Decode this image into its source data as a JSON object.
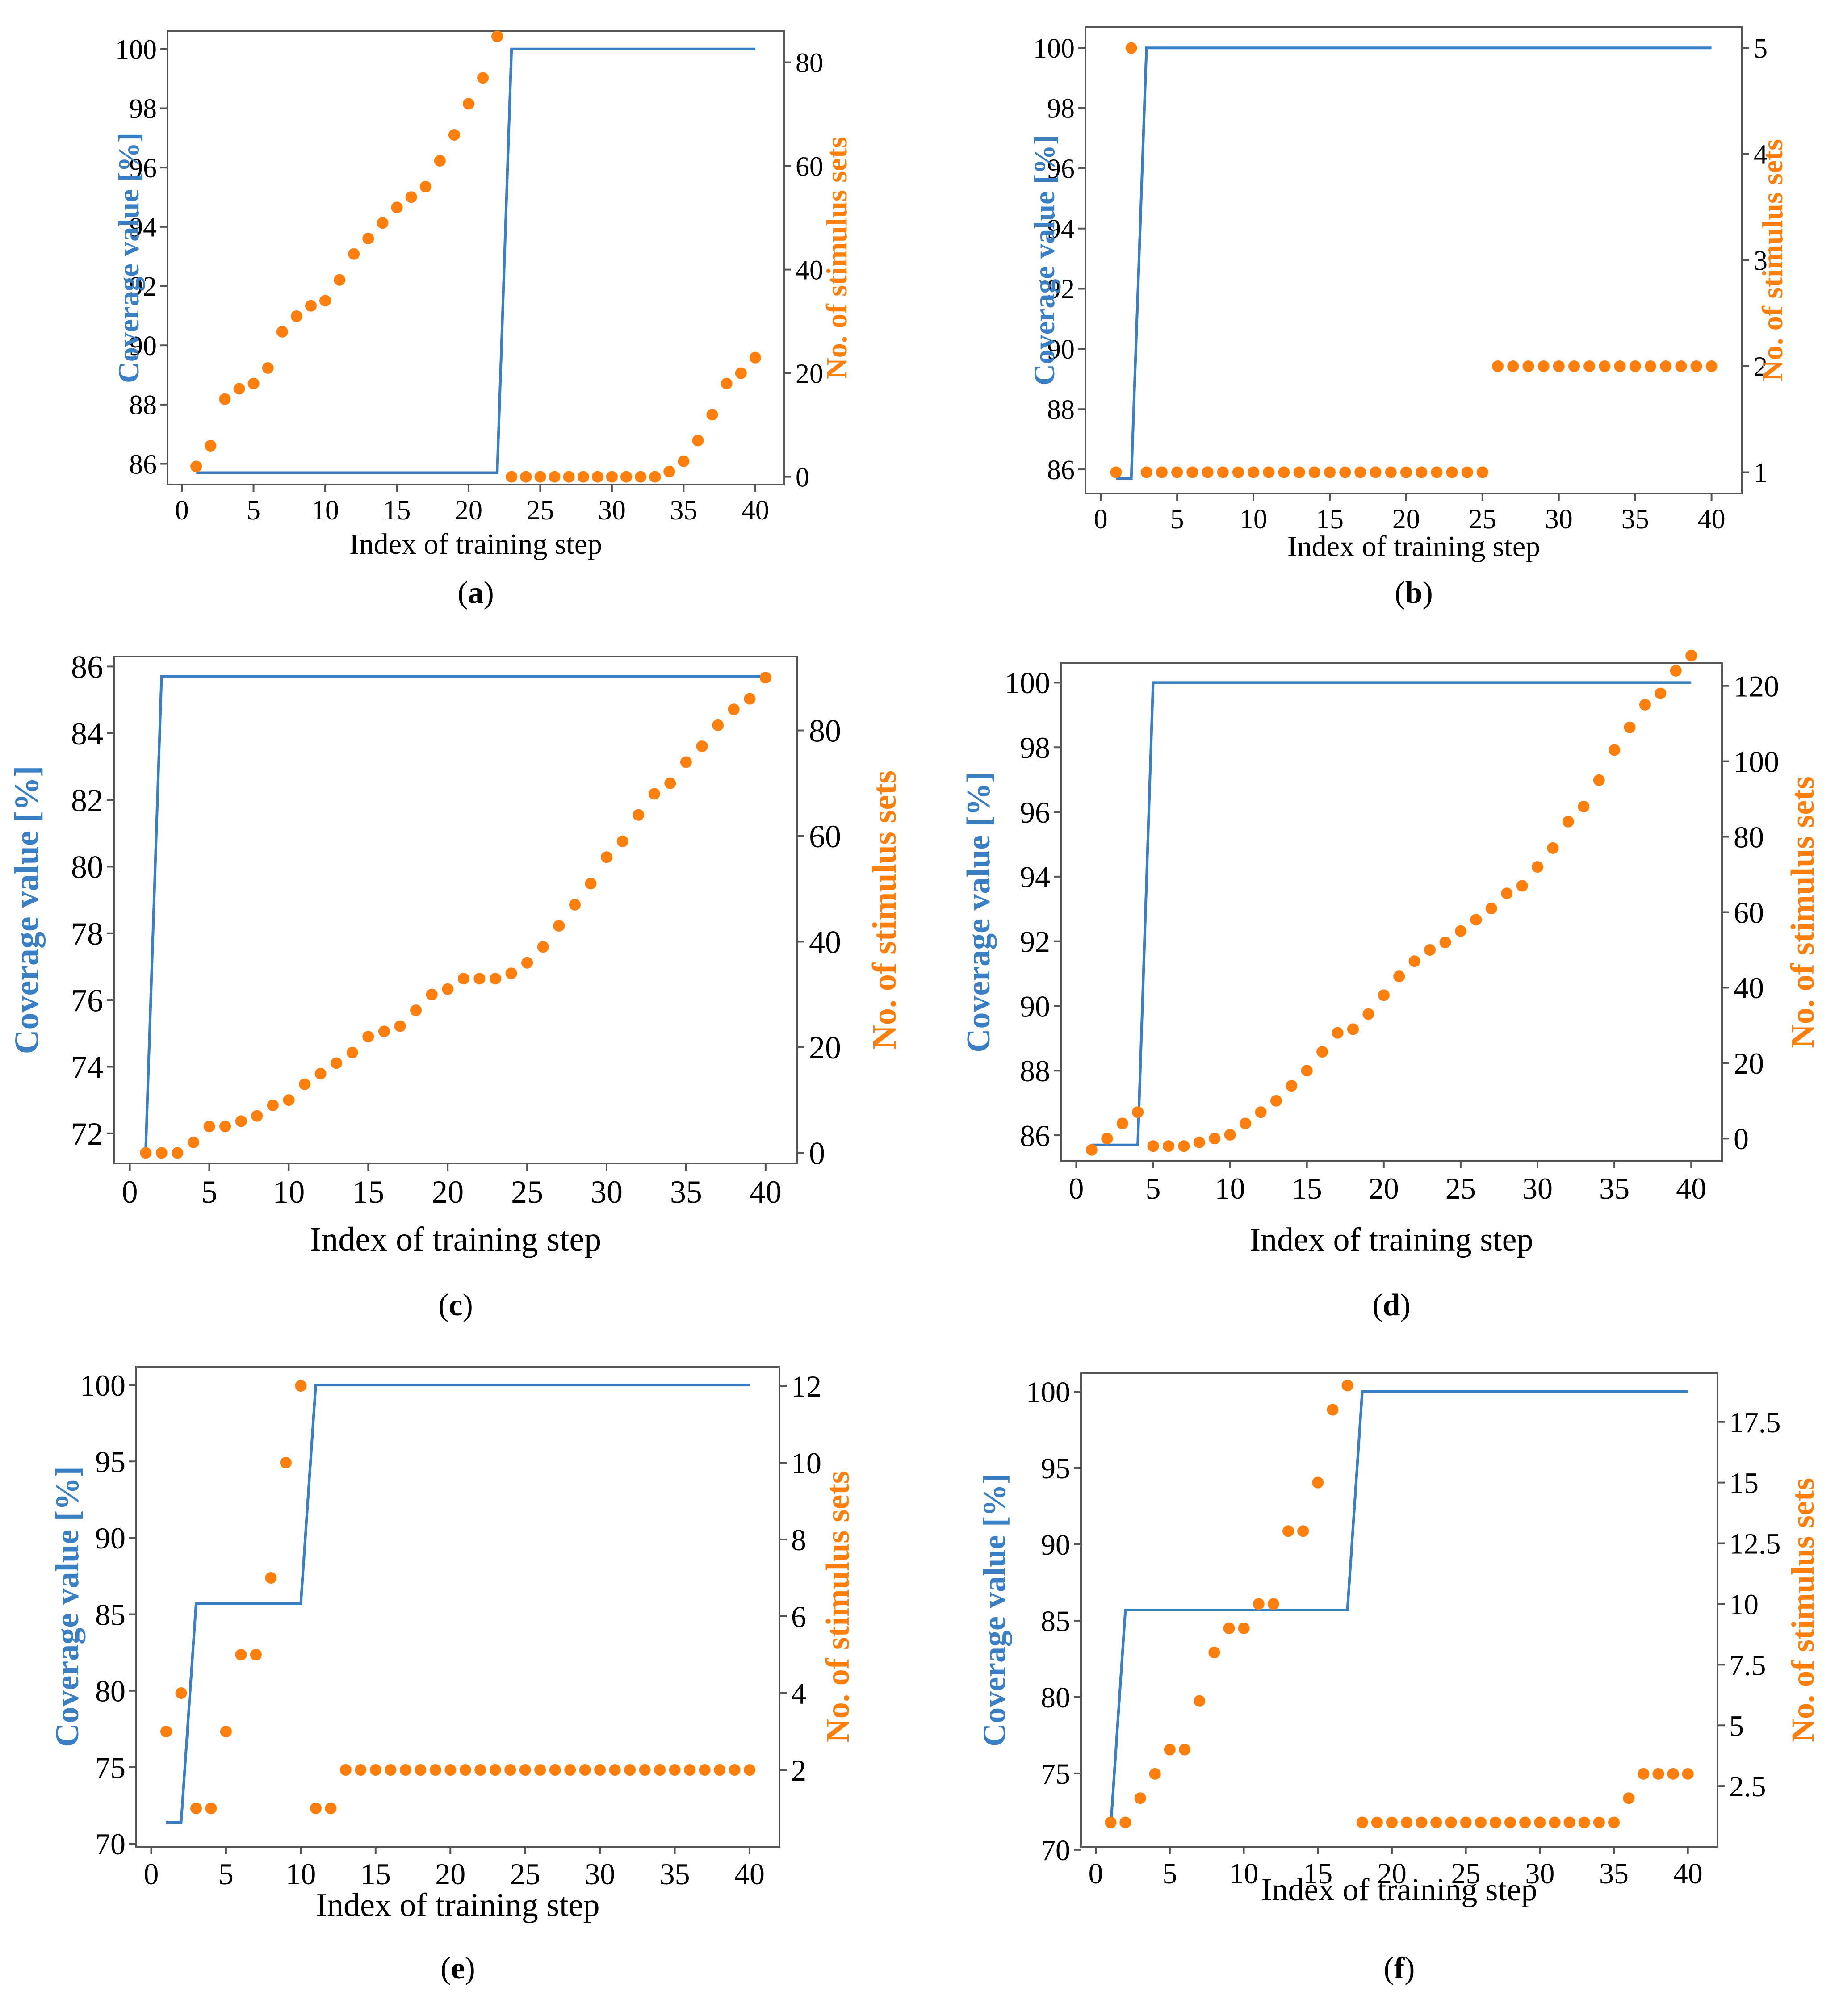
{
  "figure": {
    "colors": {
      "coverage": "#3a7fc3",
      "stimulus": "#ff7f0e",
      "axis": "#555555"
    }
  },
  "chart_data": [
    {
      "panel": "a",
      "caption": "(a)",
      "type": "line",
      "xlabel": "Index of training step",
      "ylabel_left": "Coverage value [%]",
      "ylabel_right": "No. of stimulus sets",
      "xlim": [
        -1,
        42
      ],
      "ylim_left": [
        85.3,
        100.6
      ],
      "ylim_right": [
        -1.5,
        86
      ],
      "xticks": [
        0,
        5,
        10,
        15,
        20,
        25,
        30,
        35,
        40
      ],
      "yticks_left": [
        86,
        88,
        90,
        92,
        94,
        96,
        98,
        100
      ],
      "yticks_right": [
        0,
        20,
        40,
        60,
        80
      ],
      "x": [
        1,
        2,
        3,
        4,
        5,
        6,
        7,
        8,
        9,
        10,
        11,
        12,
        13,
        14,
        15,
        16,
        17,
        18,
        19,
        20,
        21,
        22,
        23,
        24,
        25,
        26,
        27,
        28,
        29,
        30,
        31,
        32,
        33,
        34,
        35,
        36,
        37,
        38,
        39,
        40
      ],
      "coverage": [
        85.7,
        85.7,
        85.7,
        85.7,
        85.7,
        85.7,
        85.7,
        85.7,
        85.7,
        85.7,
        85.7,
        85.7,
        85.7,
        85.7,
        85.7,
        85.7,
        85.7,
        85.7,
        85.7,
        85.7,
        85.7,
        85.7,
        100,
        100,
        100,
        100,
        100,
        100,
        100,
        100,
        100,
        100,
        100,
        100,
        100,
        100,
        100,
        100,
        100,
        100
      ],
      "stimulus": [
        2,
        6,
        15,
        17,
        18,
        21,
        28,
        31,
        33,
        34,
        38,
        43,
        46,
        49,
        52,
        54,
        56,
        61,
        66,
        72,
        77,
        85,
        0,
        0,
        0,
        0,
        0,
        0,
        0,
        0,
        0,
        0,
        0,
        1,
        3,
        7,
        12,
        18,
        20,
        23
      ]
    },
    {
      "panel": "b",
      "caption": "(b)",
      "type": "line",
      "xlabel": "Index of training step",
      "ylabel_left": "Coverage value [%]",
      "ylabel_right": "No. of stimulus sets",
      "xlim": [
        -1,
        42
      ],
      "ylim_left": [
        85.2,
        100.7
      ],
      "ylim_right": [
        0.8,
        5.2
      ],
      "xticks": [
        0,
        5,
        10,
        15,
        20,
        25,
        30,
        35,
        40
      ],
      "yticks_left": [
        86,
        88,
        90,
        92,
        94,
        96,
        98,
        100
      ],
      "yticks_right": [
        1,
        2,
        3,
        4,
        5
      ],
      "x": [
        1,
        2,
        3,
        4,
        5,
        6,
        7,
        8,
        9,
        10,
        11,
        12,
        13,
        14,
        15,
        16,
        17,
        18,
        19,
        20,
        21,
        22,
        23,
        24,
        25,
        26,
        27,
        28,
        29,
        30,
        31,
        32,
        33,
        34,
        35,
        36,
        37,
        38,
        39,
        40
      ],
      "coverage": [
        85.7,
        85.7,
        100,
        100,
        100,
        100,
        100,
        100,
        100,
        100,
        100,
        100,
        100,
        100,
        100,
        100,
        100,
        100,
        100,
        100,
        100,
        100,
        100,
        100,
        100,
        100,
        100,
        100,
        100,
        100,
        100,
        100,
        100,
        100,
        100,
        100,
        100,
        100,
        100,
        100
      ],
      "stimulus": [
        1,
        5,
        1,
        1,
        1,
        1,
        1,
        1,
        1,
        1,
        1,
        1,
        1,
        1,
        1,
        1,
        1,
        1,
        1,
        1,
        1,
        1,
        1,
        1,
        1,
        2,
        2,
        2,
        2,
        2,
        2,
        2,
        2,
        2,
        2,
        2,
        2,
        2,
        2,
        2
      ]
    },
    {
      "panel": "c",
      "caption": "(c)",
      "type": "line",
      "xlabel": "Index of training step",
      "ylabel_left": "Coverage value [%]",
      "ylabel_right": "No. of stimulus sets",
      "xlim": [
        -1,
        42
      ],
      "ylim_left": [
        71.1,
        86.3
      ],
      "ylim_right": [
        -2,
        94
      ],
      "xticks": [
        0,
        5,
        10,
        15,
        20,
        25,
        30,
        35,
        40
      ],
      "yticks_left": [
        72,
        74,
        76,
        78,
        80,
        82,
        84,
        86
      ],
      "yticks_right": [
        0,
        20,
        40,
        60,
        80
      ],
      "x": [
        1,
        2,
        3,
        4,
        5,
        6,
        7,
        8,
        9,
        10,
        11,
        12,
        13,
        14,
        15,
        16,
        17,
        18,
        19,
        20,
        21,
        22,
        23,
        24,
        25,
        26,
        27,
        28,
        29,
        30,
        31,
        32,
        33,
        34,
        35,
        36,
        37,
        38,
        39,
        40
      ],
      "coverage": [
        71.5,
        85.7,
        85.7,
        85.7,
        85.7,
        85.7,
        85.7,
        85.7,
        85.7,
        85.7,
        85.7,
        85.7,
        85.7,
        85.7,
        85.7,
        85.7,
        85.7,
        85.7,
        85.7,
        85.7,
        85.7,
        85.7,
        85.7,
        85.7,
        85.7,
        85.7,
        85.7,
        85.7,
        85.7,
        85.7,
        85.7,
        85.7,
        85.7,
        85.7,
        85.7,
        85.7,
        85.7,
        85.7,
        85.7,
        85.7
      ],
      "stimulus": [
        0,
        0,
        0,
        2,
        5,
        5,
        6,
        7,
        9,
        10,
        13,
        15,
        17,
        19,
        22,
        23,
        24,
        27,
        30,
        31,
        33,
        33,
        33,
        34,
        36,
        39,
        43,
        47,
        51,
        56,
        59,
        64,
        68,
        70,
        74,
        77,
        81,
        84,
        86,
        90
      ]
    },
    {
      "panel": "d",
      "caption": "(d)",
      "type": "line",
      "xlabel": "Index of training step",
      "ylabel_left": "Coverage value [%]",
      "ylabel_right": "No. of stimulus sets",
      "xlim": [
        -1,
        42
      ],
      "ylim_left": [
        85.2,
        100.6
      ],
      "ylim_right": [
        -6,
        126
      ],
      "xticks": [
        0,
        5,
        10,
        15,
        20,
        25,
        30,
        35,
        40
      ],
      "yticks_left": [
        86,
        88,
        90,
        92,
        94,
        96,
        98,
        100
      ],
      "yticks_right": [
        0,
        20,
        40,
        60,
        80,
        100,
        120
      ],
      "x": [
        1,
        2,
        3,
        4,
        5,
        6,
        7,
        8,
        9,
        10,
        11,
        12,
        13,
        14,
        15,
        16,
        17,
        18,
        19,
        20,
        21,
        22,
        23,
        24,
        25,
        26,
        27,
        28,
        29,
        30,
        31,
        32,
        33,
        34,
        35,
        36,
        37,
        38,
        39,
        40
      ],
      "coverage": [
        85.7,
        85.7,
        85.7,
        85.7,
        100,
        100,
        100,
        100,
        100,
        100,
        100,
        100,
        100,
        100,
        100,
        100,
        100,
        100,
        100,
        100,
        100,
        100,
        100,
        100,
        100,
        100,
        100,
        100,
        100,
        100,
        100,
        100,
        100,
        100,
        100,
        100,
        100,
        100,
        100,
        100
      ],
      "stimulus": [
        -3,
        0,
        4,
        7,
        -2,
        -2,
        -2,
        -1,
        0,
        1,
        4,
        7,
        10,
        14,
        18,
        23,
        28,
        29,
        33,
        38,
        43,
        47,
        50,
        52,
        55,
        58,
        61,
        65,
        67,
        72,
        77,
        84,
        88,
        95,
        103,
        109,
        115,
        118,
        124,
        128
      ]
    },
    {
      "panel": "e",
      "caption": "(e)",
      "type": "line",
      "xlabel": "Index of training step",
      "ylabel_left": "Coverage value [%]",
      "ylabel_right": "No. of stimulus sets",
      "xlim": [
        -1,
        42
      ],
      "ylim_left": [
        69.8,
        101.2
      ],
      "ylim_right": [
        0,
        12.5
      ],
      "xticks": [
        0,
        5,
        10,
        15,
        20,
        25,
        30,
        35,
        40
      ],
      "yticks_left": [
        70,
        75,
        80,
        85,
        90,
        95,
        100
      ],
      "yticks_right": [
        2,
        4,
        6,
        8,
        10,
        12
      ],
      "x": [
        1,
        2,
        3,
        4,
        5,
        6,
        7,
        8,
        9,
        10,
        11,
        12,
        13,
        14,
        15,
        16,
        17,
        18,
        19,
        20,
        21,
        22,
        23,
        24,
        25,
        26,
        27,
        28,
        29,
        30,
        31,
        32,
        33,
        34,
        35,
        36,
        37,
        38,
        39,
        40
      ],
      "coverage": [
        71.4,
        71.4,
        85.7,
        85.7,
        85.7,
        85.7,
        85.7,
        85.7,
        85.7,
        85.7,
        100,
        100,
        100,
        100,
        100,
        100,
        100,
        100,
        100,
        100,
        100,
        100,
        100,
        100,
        100,
        100,
        100,
        100,
        100,
        100,
        100,
        100,
        100,
        100,
        100,
        100,
        100,
        100,
        100,
        100
      ],
      "stimulus": [
        3,
        4,
        1,
        1,
        3,
        5,
        5,
        7,
        10,
        12,
        1,
        1,
        2,
        2,
        2,
        2,
        2,
        2,
        2,
        2,
        2,
        2,
        2,
        2,
        2,
        2,
        2,
        2,
        2,
        2,
        2,
        2,
        2,
        2,
        2,
        2,
        2,
        2,
        2,
        2
      ]
    },
    {
      "panel": "f",
      "caption": "(f)",
      "type": "line",
      "xlabel": "Index of training step",
      "ylabel_left": "Coverage value [%]",
      "ylabel_right": "No. of stimulus sets",
      "xlim": [
        -1,
        42
      ],
      "ylim_left": [
        70.2,
        101.2
      ],
      "ylim_right": [
        0,
        19.5
      ],
      "xticks": [
        0,
        5,
        10,
        15,
        20,
        25,
        30,
        35,
        40
      ],
      "yticks_left": [
        70,
        75,
        80,
        85,
        90,
        95,
        100
      ],
      "yticks_right": [
        2.5,
        5,
        7.5,
        10,
        12.5,
        15,
        17.5
      ],
      "ytick_labels_right": [
        "2.5",
        "5",
        "7.5",
        "10",
        "12.5",
        "15",
        "17.5"
      ],
      "x": [
        1,
        2,
        3,
        4,
        5,
        6,
        7,
        8,
        9,
        10,
        11,
        12,
        13,
        14,
        15,
        16,
        17,
        18,
        19,
        20,
        21,
        22,
        23,
        24,
        25,
        26,
        27,
        28,
        29,
        30,
        31,
        32,
        33,
        34,
        35,
        36,
        37,
        38,
        39,
        40
      ],
      "coverage": [
        71.4,
        85.7,
        85.7,
        85.7,
        85.7,
        85.7,
        85.7,
        85.7,
        85.7,
        85.7,
        85.7,
        85.7,
        85.7,
        85.7,
        85.7,
        85.7,
        85.7,
        100,
        100,
        100,
        100,
        100,
        100,
        100,
        100,
        100,
        100,
        100,
        100,
        100,
        100,
        100,
        100,
        100,
        100,
        100,
        100,
        100,
        100,
        100
      ],
      "stimulus": [
        1,
        1,
        2,
        3,
        4,
        4,
        6,
        8,
        9,
        9,
        10,
        10,
        13,
        13,
        15,
        18,
        19,
        1,
        1,
        1,
        1,
        1,
        1,
        1,
        1,
        1,
        1,
        1,
        1,
        1,
        1,
        1,
        1,
        1,
        1,
        2,
        3,
        3,
        3,
        3
      ]
    }
  ]
}
